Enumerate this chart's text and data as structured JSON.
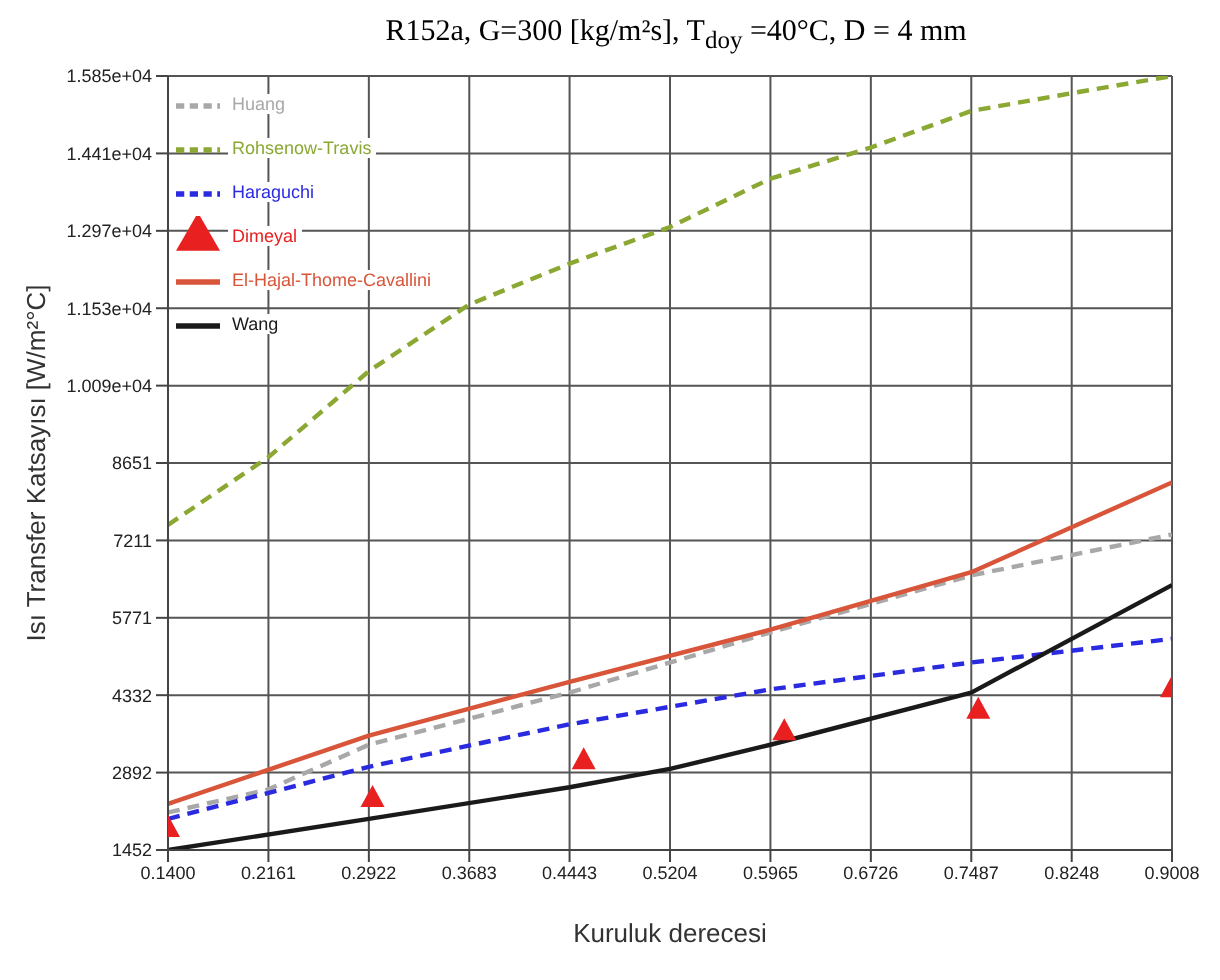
{
  "chart_data": {
    "type": "line",
    "title": "R152a, G=300 [kg/m²s], T$_{doy}$ =40°C,  D = 4 mm",
    "xlabel": "Kuruluk derecesi",
    "ylabel": "Isı Transfer Katsayısı [W/m²°C]",
    "x": [
      0.14,
      0.2922,
      0.4443,
      0.5965,
      0.7487,
      0.9008
    ],
    "xlim": [
      0.14,
      0.9008
    ],
    "xticks": [
      {
        "value": 0.14,
        "label": "0.1400"
      },
      {
        "value": 0.2161,
        "label": "0.2161"
      },
      {
        "value": 0.2922,
        "label": "0.2922"
      },
      {
        "value": 0.3683,
        "label": "0.3683"
      },
      {
        "value": 0.4443,
        "label": "0.4443"
      },
      {
        "value": 0.5204,
        "label": "0.5204"
      },
      {
        "value": 0.5965,
        "label": "0.5965"
      },
      {
        "value": 0.6726,
        "label": "0.6726"
      },
      {
        "value": 0.7487,
        "label": "0.7487"
      },
      {
        "value": 0.8248,
        "label": "0.8248"
      },
      {
        "value": 0.9008,
        "label": "0.9008"
      }
    ],
    "ylim": [
      1452,
      15850
    ],
    "yticks": [
      1452,
      2892,
      4332,
      5771,
      7211,
      8651,
      {
        "value": 10090,
        "label": "1.009e+04"
      },
      {
        "value": 11530,
        "label": "1.153e+04"
      },
      {
        "value": 12970,
        "label": "1.297e+04"
      },
      {
        "value": 14410,
        "label": "1.441e+04"
      },
      {
        "value": 15850,
        "label": "1.585e+04"
      }
    ],
    "grid": true,
    "legend": "top left",
    "series": [
      {
        "name": "Huang",
        "color": "#a8a8a8",
        "line_style": "dashed",
        "marker": "none",
        "x": [
          0.14,
          0.2161,
          0.2922,
          0.4443,
          0.5965,
          0.7487,
          0.9008
        ],
        "values": [
          2150,
          2580,
          3410,
          4380,
          5500,
          6560,
          7320
        ]
      },
      {
        "name": "Rohsenow-Travis",
        "color": "#8aa832",
        "line_style": "dashed",
        "marker": "none",
        "x": [
          0.14,
          0.2161,
          0.2922,
          0.3683,
          0.4443,
          0.5204,
          0.5965,
          0.6726,
          0.7487,
          0.8248,
          0.9008
        ],
        "values": [
          7500,
          8760,
          10360,
          11600,
          12360,
          13040,
          13940,
          14520,
          15200,
          15530,
          15850
        ]
      },
      {
        "name": "Haraguchi",
        "color": "#2a2ae0",
        "line_style": "dashed",
        "marker": "none",
        "values": [
          2030,
          3000,
          3790,
          4440,
          4940,
          5380
        ]
      },
      {
        "name": "Dimeyal",
        "type": "scatter",
        "color": "#e82020",
        "marker": "triangle",
        "x": [
          0.14,
          0.295,
          0.455,
          0.607,
          0.754,
          0.9008
        ],
        "values": [
          1880,
          2440,
          3140,
          3680,
          4080,
          4480
        ]
      },
      {
        "name": "El-Hajal-Thome-Cavallini",
        "color": "#d9553a",
        "line_style": "solid",
        "marker": "none",
        "values": [
          2310,
          3580,
          4580,
          5550,
          6620,
          8290
        ]
      },
      {
        "name": "Wang",
        "color": "#1a1a1a",
        "line_style": "solid",
        "marker": "none",
        "x": [
          0.14,
          0.2922,
          0.4443,
          0.5204,
          0.5965,
          0.7487,
          0.9008
        ],
        "values": [
          1452,
          2030,
          2620,
          2960,
          3410,
          4380,
          6380
        ]
      }
    ]
  }
}
